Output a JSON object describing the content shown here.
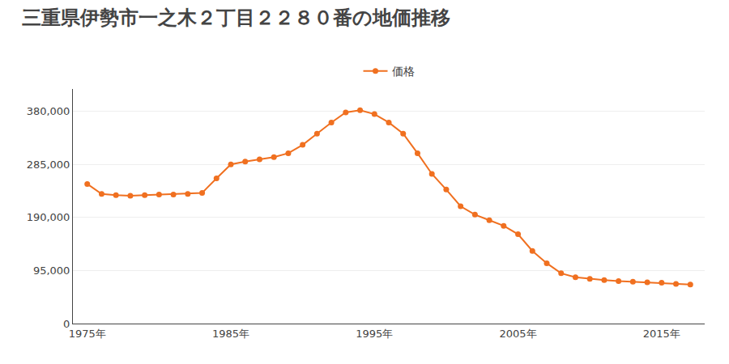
{
  "chart_data": {
    "type": "line",
    "title": "三重県伊勢市一之木２丁目２２８０番の地価推移",
    "x": [
      1975,
      1976,
      1977,
      1978,
      1979,
      1980,
      1981,
      1982,
      1983,
      1984,
      1985,
      1986,
      1987,
      1988,
      1989,
      1990,
      1991,
      1992,
      1993,
      1994,
      1995,
      1996,
      1997,
      1998,
      1999,
      2000,
      2001,
      2002,
      2003,
      2004,
      2005,
      2006,
      2007,
      2008,
      2009,
      2010,
      2011,
      2012,
      2013,
      2014,
      2015,
      2016,
      2017
    ],
    "series": [
      {
        "name": "価格",
        "color": "#f07020",
        "marker": "circle",
        "line_style": "solid",
        "values": [
          250000,
          232000,
          230000,
          229000,
          230000,
          231000,
          231000,
          232000,
          234000,
          260000,
          285000,
          290000,
          294000,
          298000,
          305000,
          320000,
          340000,
          360000,
          378000,
          382000,
          375000,
          360000,
          340000,
          305000,
          268000,
          240000,
          210000,
          195000,
          185000,
          175000,
          160000,
          130000,
          108000,
          90000,
          83000,
          80000,
          78000,
          76000,
          75000,
          74000,
          73000,
          71000,
          70000
        ]
      }
    ],
    "xlim": [
      1974,
      2018
    ],
    "ylim": [
      0,
      420000
    ],
    "xticks": [
      {
        "value": 1975,
        "label": "1975年"
      },
      {
        "value": 1985,
        "label": "1985年"
      },
      {
        "value": 1995,
        "label": "1995年"
      },
      {
        "value": 2005,
        "label": "2005年"
      },
      {
        "value": 2015,
        "label": "2015年"
      }
    ],
    "yticks": [
      0,
      {
        "value": 95000,
        "label": "95,000"
      },
      {
        "value": 190000,
        "label": "190,000"
      },
      {
        "value": 285000,
        "label": "285,000"
      },
      {
        "value": 380000,
        "label": "380,000"
      }
    ],
    "grid": "y",
    "legend": "top"
  }
}
